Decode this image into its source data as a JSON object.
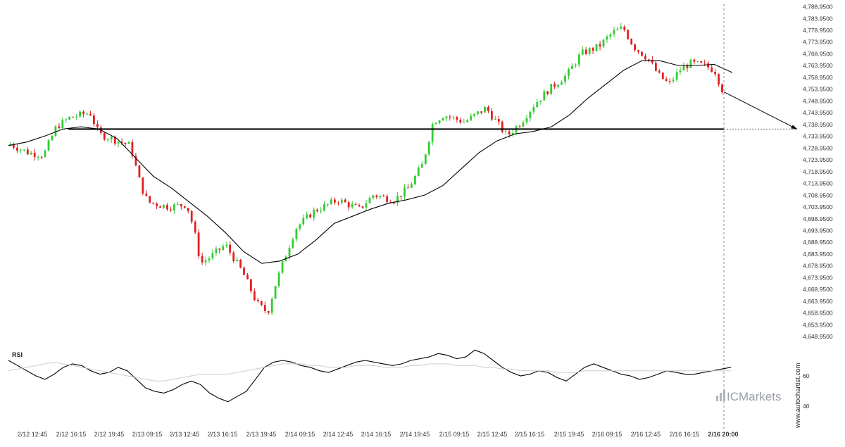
{
  "chart_data": [
    {
      "type": "candlestick",
      "title": "",
      "y_axis": {
        "ticks": [
          "4,788.9500",
          "4,783.9500",
          "4,778.9500",
          "4,773.9500",
          "4,768.9500",
          "4,763.9500",
          "4,758.9500",
          "4,753.9500",
          "4,748.9500",
          "4,743.9500",
          "4,738.9500",
          "4,733.9500",
          "4,728.9500",
          "4,723.9500",
          "4,718.9500",
          "4,713.9500",
          "4,708.9500",
          "4,703.9500",
          "4,698.9500",
          "4,693.9500",
          "4,688.9500",
          "4,683.9500",
          "4,678.9500",
          "4,673.9500",
          "4,668.9500",
          "4,663.9500",
          "4,658.9500",
          "4,653.9500",
          "4,648.9500"
        ],
        "ylim": [
          4646.0,
          4790.0
        ],
        "position": "right"
      },
      "x_axis": {
        "ticks": [
          "2/12 12:45",
          "2/12 16:15",
          "2/12 19:45",
          "2/13 09:15",
          "2/13 12:45",
          "2/13 16:15",
          "2/13 19:45",
          "2/14 09:15",
          "2/14 12:45",
          "2/14 16:15",
          "2/14 19:45",
          "2/15 09:15",
          "2/15 12:45",
          "2/15 16:15",
          "2/15 19:45",
          "2/16 09:15",
          "2/16 12:45",
          "2/16 16:15",
          "2/16 20:00"
        ],
        "highlighted_tick": "2/16 20:00"
      },
      "moving_average": [
        4730.0,
        4731.5,
        4734.0,
        4737.0,
        4738.0,
        4737.0,
        4733.0,
        4725.0,
        4717.0,
        4712.0,
        4706.0,
        4700.0,
        4693.0,
        4685.0,
        4680.0,
        4681.0,
        4684.0,
        4690.0,
        4697.0,
        4700.0,
        4703.0,
        4705.5,
        4707.0,
        4709.0,
        4713.0,
        4720.0,
        4727.0,
        4732.0,
        4735.0,
        4736.0,
        4738.0,
        4743.0,
        4750.0,
        4756.0,
        4762.0,
        4766.0,
        4766.0,
        4764.0,
        4764.0,
        4764.5,
        4761.0
      ],
      "support_level": 4737.0,
      "forecast": {
        "from": 4752.8,
        "to": 4737.0
      },
      "current_time_marker": "2/16 20:00",
      "colors": {
        "up": "#33cc33",
        "down": "#e02020",
        "line": "#000000",
        "grid": "none"
      }
    },
    {
      "type": "line",
      "name": "RSI",
      "ticks": [
        "60",
        "40"
      ],
      "ylim": [
        30,
        75
      ],
      "values": [
        66,
        63,
        60,
        57,
        55,
        58,
        62,
        64,
        63,
        60,
        58,
        59,
        62,
        60,
        55,
        50,
        48,
        47,
        49,
        52,
        54,
        52,
        47,
        44,
        42,
        45,
        48,
        55,
        62,
        65,
        66,
        65,
        63,
        62,
        60,
        59,
        61,
        63,
        65,
        66,
        65,
        64,
        63,
        64,
        66,
        67,
        68,
        70,
        69,
        67,
        68,
        72,
        70,
        66,
        62,
        59,
        57,
        58,
        60,
        59,
        56,
        54,
        58,
        62,
        64,
        62,
        60,
        58,
        57,
        55,
        56,
        58,
        60,
        59,
        58,
        58,
        59,
        60,
        61,
        62
      ],
      "smooth_values": [
        60,
        61,
        62,
        63,
        64,
        65,
        64,
        63,
        62,
        61,
        60,
        59,
        58,
        57,
        56,
        55,
        54,
        54,
        55,
        56,
        57,
        58,
        58,
        58,
        58,
        59,
        60,
        61,
        62,
        63,
        64,
        64,
        64,
        63,
        63,
        62,
        62,
        62,
        63,
        63,
        63,
        62,
        62,
        62,
        63,
        63,
        64,
        64,
        64,
        63,
        63,
        63,
        62,
        62,
        61,
        61,
        60,
        60,
        60,
        60,
        59,
        59,
        59,
        60,
        60,
        60,
        60,
        60,
        60,
        60,
        60,
        60,
        60,
        60,
        60,
        60,
        60,
        60,
        60,
        60
      ]
    }
  ],
  "branding": {
    "logo_text": "ICMarkets",
    "credit": "www.autochartist.com"
  }
}
